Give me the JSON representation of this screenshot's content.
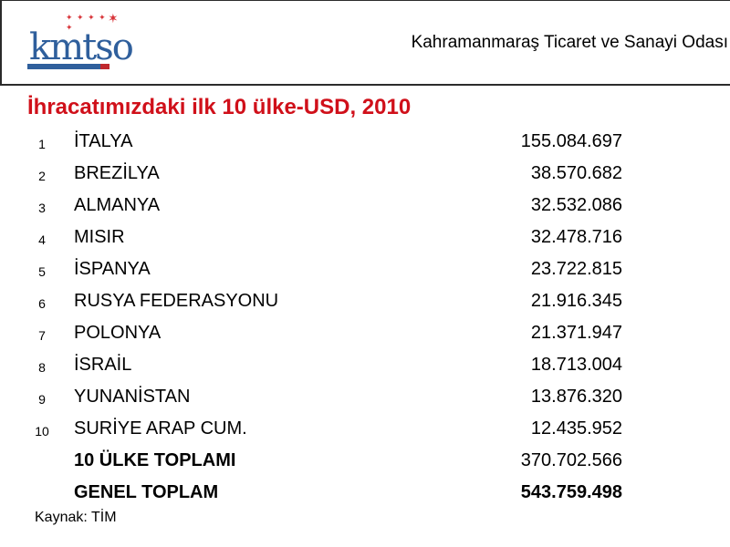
{
  "header": {
    "org_name": "Kahramanmaraş Ticaret ve Sanayi Odası",
    "logo_text": "kmtso"
  },
  "title": "İhracatımızdaki ilk 10 ülke-USD, 2010",
  "rows": [
    {
      "rank": "1",
      "country": "İTALYA",
      "value": "155.084.697"
    },
    {
      "rank": "2",
      "country": "BREZİLYA",
      "value": "38.570.682"
    },
    {
      "rank": "3",
      "country": "ALMANYA",
      "value": "32.532.086"
    },
    {
      "rank": "4",
      "country": "MISIR",
      "value": "32.478.716"
    },
    {
      "rank": "5",
      "country": "İSPANYA",
      "value": "23.722.815"
    },
    {
      "rank": "6",
      "country": "RUSYA FEDERASYONU",
      "value": "21.916.345"
    },
    {
      "rank": "7",
      "country": "POLONYA",
      "value": "21.371.947"
    },
    {
      "rank": "8",
      "country": "İSRAİL",
      "value": "18.713.004"
    },
    {
      "rank": "9",
      "country": "YUNANİSTAN",
      "value": "13.876.320"
    },
    {
      "rank": "10",
      "country": "SURİYE ARAP CUM.",
      "value": "12.435.952"
    }
  ],
  "totals": [
    {
      "label": "10 ÜLKE TOPLAMI",
      "value": "370.702.566"
    },
    {
      "label": "GENEL TOPLAM",
      "value": "543.759.498"
    }
  ],
  "source": "Kaynak: TİM",
  "colors": {
    "title": "#d0101a",
    "logo": "#2f5f9c",
    "accent_red": "#c0282d"
  }
}
